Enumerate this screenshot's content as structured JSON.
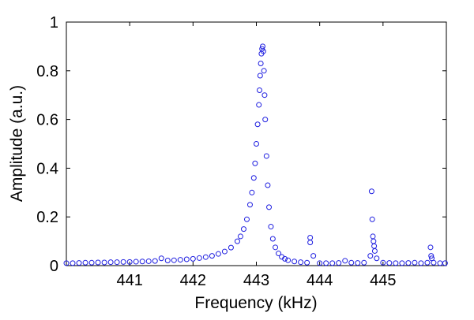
{
  "chart_data": {
    "type": "scatter",
    "title": "",
    "xlabel": "Frequency (kHz)",
    "ylabel": "Amplitude (a.u.)",
    "xlim": [
      440.0,
      446.0
    ],
    "ylim": [
      0,
      1
    ],
    "x_ticks": [
      441,
      442,
      443,
      444,
      445
    ],
    "x_tick_labels": [
      "441",
      "442",
      "443",
      "444",
      "445"
    ],
    "y_ticks": [
      0,
      0.2,
      0.4,
      0.6,
      0.8,
      1
    ],
    "y_tick_labels": [
      "0",
      "0.2",
      "0.4",
      "0.6",
      "0.8",
      "1"
    ],
    "grid": false,
    "legend": "none",
    "marker": "open-circle",
    "color": "#1f1fe0",
    "series": [
      {
        "x": [
          440.0,
          440.1,
          440.2,
          440.3,
          440.4,
          440.5,
          440.6,
          440.7,
          440.8,
          440.9,
          441.0,
          441.1,
          441.2,
          441.3,
          441.4,
          441.5,
          441.6,
          441.7,
          441.8,
          441.9,
          442.0,
          442.1,
          442.2,
          442.3,
          442.4,
          442.5,
          442.6,
          442.7,
          442.75,
          442.8,
          442.85,
          442.9,
          442.93,
          442.96,
          442.98,
          443.0,
          443.02,
          443.04,
          443.05,
          443.06,
          443.07,
          443.08,
          443.09,
          443.1,
          443.11,
          443.12,
          443.13,
          443.14,
          443.16,
          443.18,
          443.2,
          443.23,
          443.26,
          443.3,
          443.35,
          443.4,
          443.45,
          443.5,
          443.6,
          443.7,
          443.8,
          443.85,
          443.85,
          443.9,
          444.0,
          444.1,
          444.2,
          444.3,
          444.4,
          444.5,
          444.6,
          444.7,
          444.8,
          444.82,
          444.83,
          444.84,
          444.85,
          444.86,
          444.87,
          444.9,
          445.0,
          445.1,
          445.2,
          445.3,
          445.4,
          445.5,
          445.6,
          445.7,
          445.75,
          445.76,
          445.77,
          445.8,
          445.9,
          445.98
        ],
        "y": [
          0.01,
          0.01,
          0.011,
          0.012,
          0.012,
          0.013,
          0.013,
          0.014,
          0.014,
          0.015,
          0.015,
          0.016,
          0.017,
          0.018,
          0.019,
          0.03,
          0.021,
          0.022,
          0.024,
          0.026,
          0.028,
          0.031,
          0.035,
          0.04,
          0.048,
          0.058,
          0.074,
          0.1,
          0.12,
          0.15,
          0.19,
          0.25,
          0.3,
          0.36,
          0.42,
          0.5,
          0.58,
          0.66,
          0.72,
          0.78,
          0.83,
          0.87,
          0.89,
          0.9,
          0.88,
          0.8,
          0.7,
          0.6,
          0.45,
          0.33,
          0.24,
          0.16,
          0.11,
          0.075,
          0.05,
          0.036,
          0.028,
          0.022,
          0.017,
          0.014,
          0.012,
          0.115,
          0.095,
          0.04,
          0.01,
          0.01,
          0.01,
          0.011,
          0.02,
          0.012,
          0.011,
          0.012,
          0.04,
          0.305,
          0.19,
          0.12,
          0.1,
          0.08,
          0.06,
          0.03,
          0.012,
          0.011,
          0.01,
          0.01,
          0.011,
          0.012,
          0.01,
          0.012,
          0.075,
          0.04,
          0.03,
          0.012,
          0.01,
          0.01
        ]
      }
    ]
  }
}
